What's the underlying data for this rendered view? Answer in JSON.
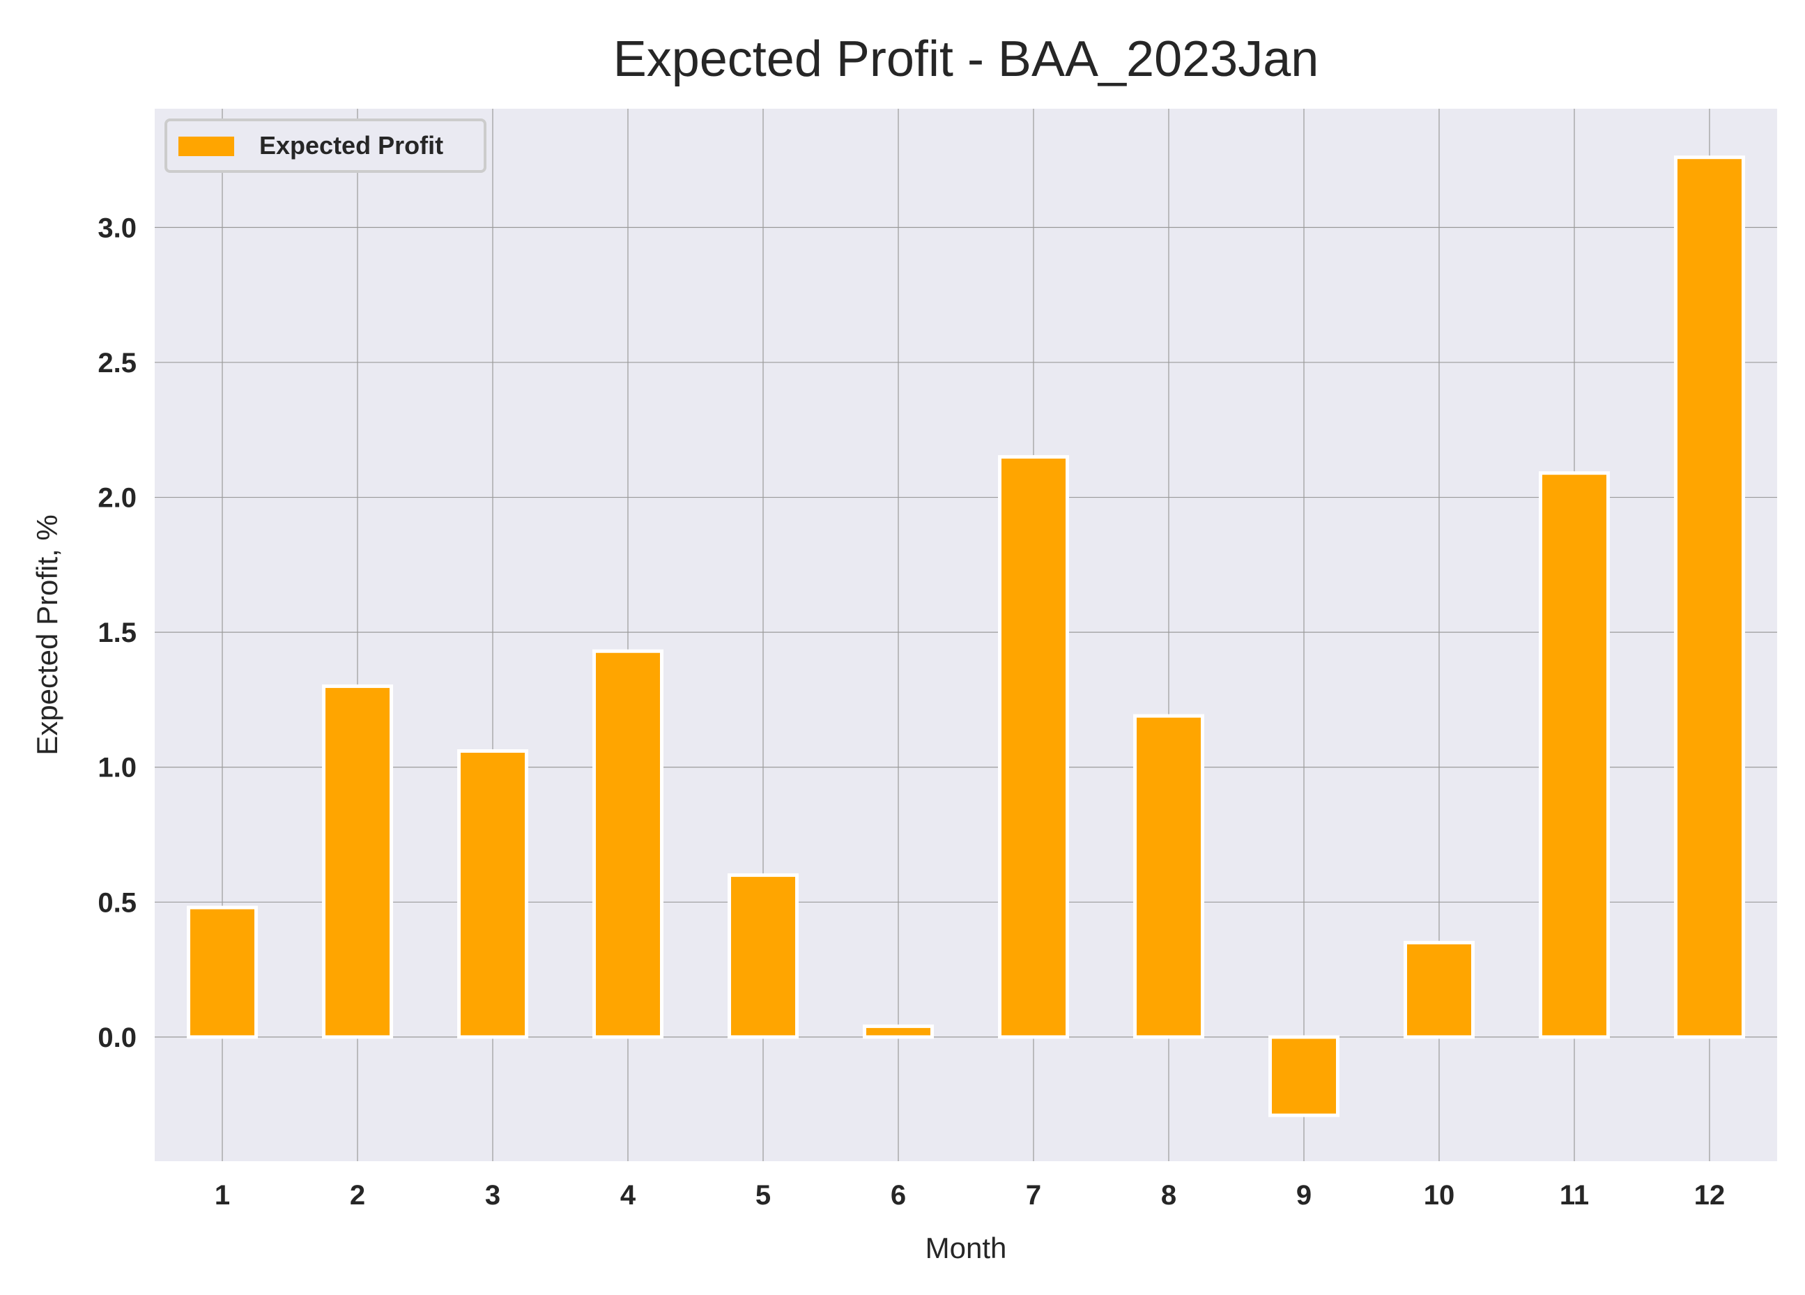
{
  "chart_data": {
    "type": "bar",
    "title": "Expected Profit - BAA_2023Jan",
    "xlabel": "Month",
    "ylabel": "Expected Profit, %",
    "categories": [
      "1",
      "2",
      "3",
      "4",
      "5",
      "6",
      "7",
      "8",
      "9",
      "10",
      "11",
      "12"
    ],
    "series": [
      {
        "name": "Expected Profit",
        "values": [
          0.48,
          1.3,
          1.06,
          1.43,
          0.6,
          0.04,
          2.15,
          1.19,
          -0.29,
          0.35,
          2.09,
          3.26
        ]
      }
    ],
    "ylim": [
      -0.46,
      3.44
    ],
    "yticks": [
      0.0,
      0.5,
      1.0,
      1.5,
      2.0,
      2.5,
      3.0
    ],
    "ytick_labels": [
      "0.0",
      "0.5",
      "1.0",
      "1.5",
      "2.0",
      "2.5",
      "3.0"
    ],
    "grid": true,
    "legend_position": "top-left",
    "colors": {
      "bar": "#FFA500",
      "bar_edge": "#ffffff",
      "plot_background": "#EAEAF2",
      "grid": "#9a9a9a",
      "text": "#262626"
    }
  }
}
